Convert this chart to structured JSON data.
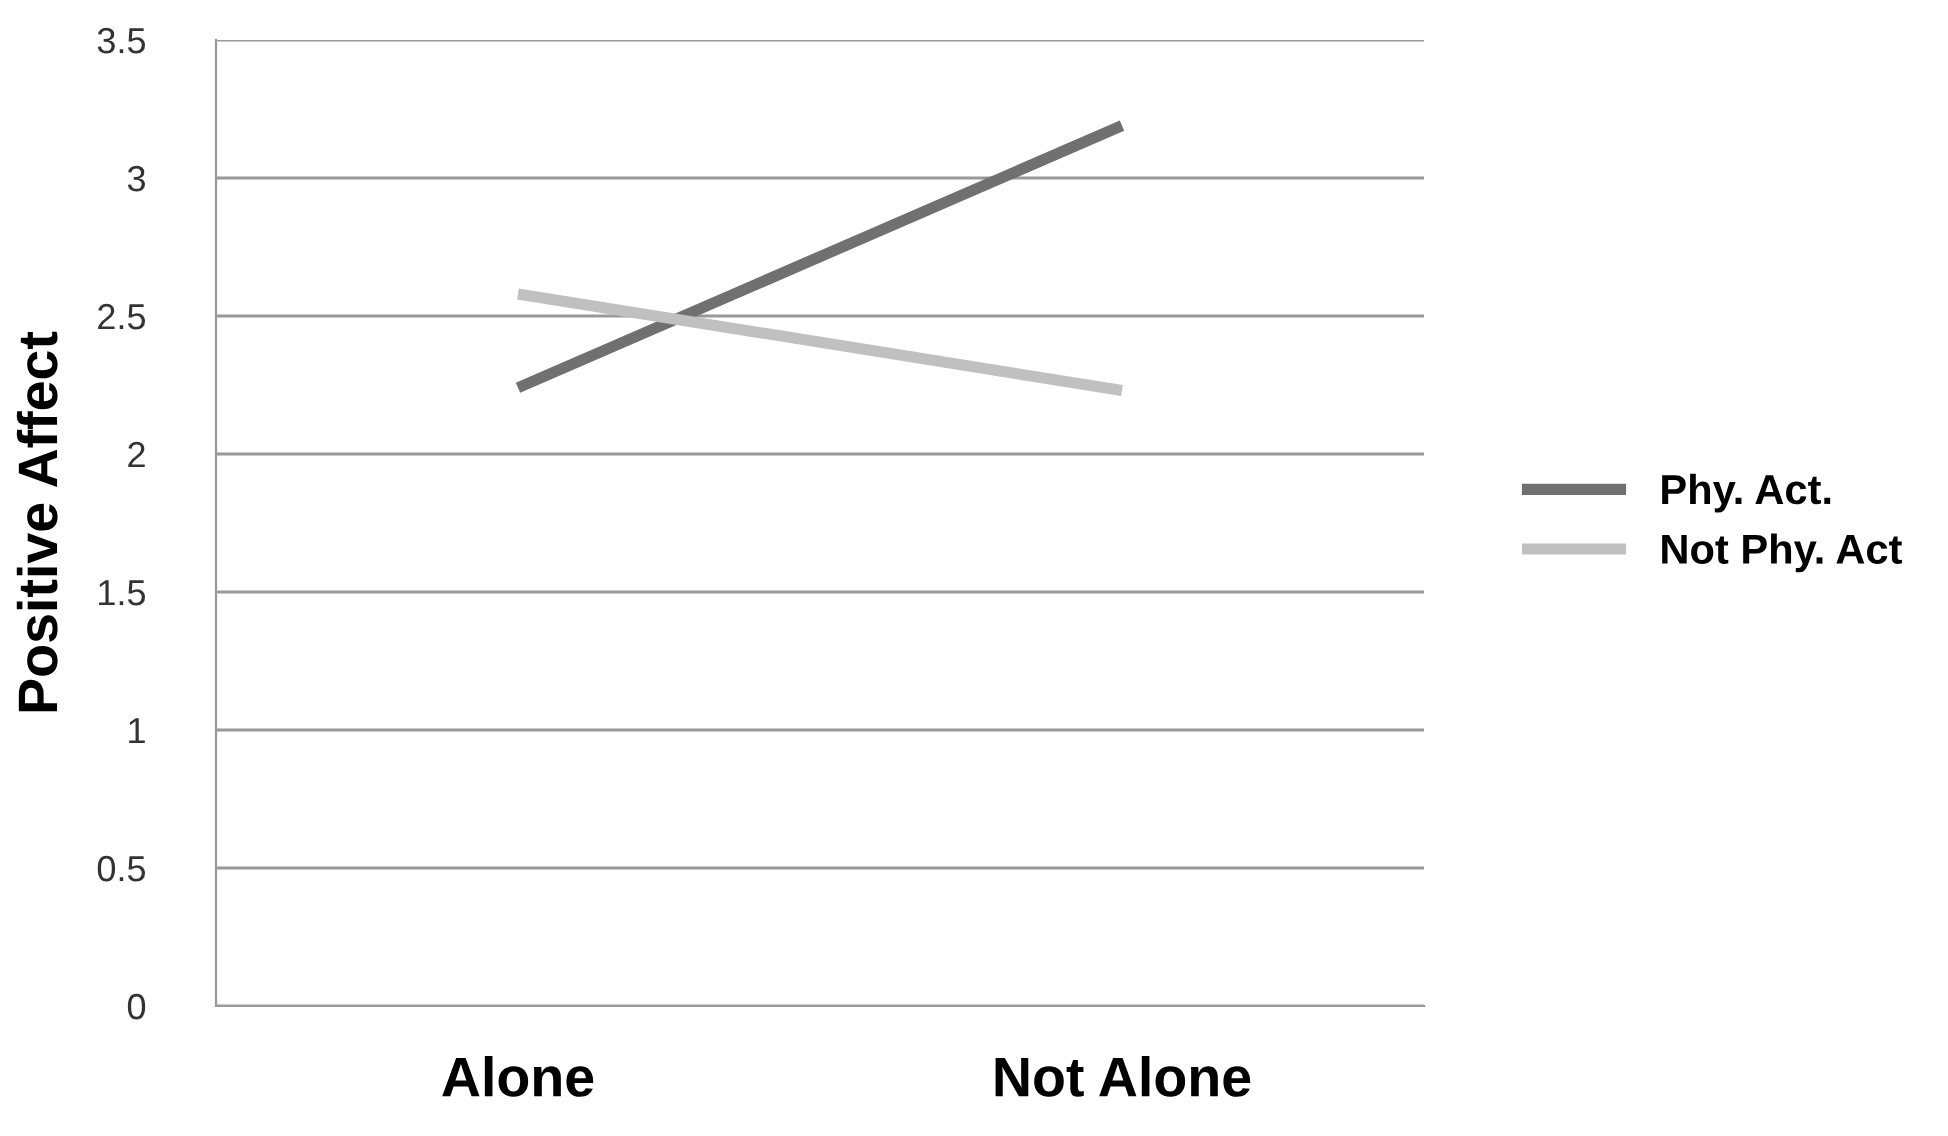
{
  "chart_data": {
    "type": "line",
    "ylabel": "Positive Affect",
    "categories": [
      "Alone",
      "Not Alone"
    ],
    "series": [
      {
        "name": "Phy. Act.",
        "color": "#707070",
        "values": [
          2.24,
          3.19
        ]
      },
      {
        "name": "Not Phy. Act",
        "color": "#c0c0c0",
        "values": [
          2.58,
          2.23
        ]
      }
    ],
    "ylim": [
      0,
      3.5
    ],
    "yticks": [
      0,
      0.5,
      1,
      1.5,
      2,
      2.5,
      3,
      3.5
    ],
    "grid": "y",
    "legend": "right",
    "marker": "none",
    "line_style": "solid"
  }
}
